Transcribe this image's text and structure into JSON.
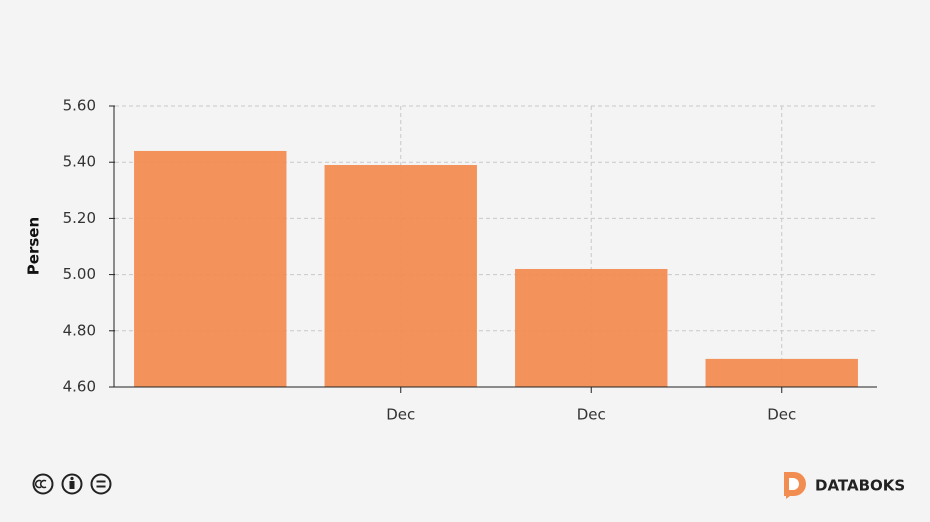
{
  "chart_data": {
    "type": "bar",
    "y_label": "Persen",
    "categories": [
      null,
      "Dec",
      "Dec",
      "Dec"
    ],
    "values": [
      5.44,
      5.39,
      5.02,
      4.7
    ],
    "color": "#f28d52",
    "ylim": [
      4.6,
      5.6
    ],
    "yticks": [
      {
        "value": 4.6,
        "label": "4.60"
      },
      {
        "value": 4.8,
        "label": "4.80"
      },
      {
        "value": 5.0,
        "label": "5.00"
      },
      {
        "value": 5.2,
        "label": "5.20"
      },
      {
        "value": 5.4,
        "label": "5.40"
      },
      {
        "value": 5.6,
        "label": "5.60"
      }
    ],
    "grid": true
  },
  "footer": {
    "brand": "DATABOKS"
  }
}
